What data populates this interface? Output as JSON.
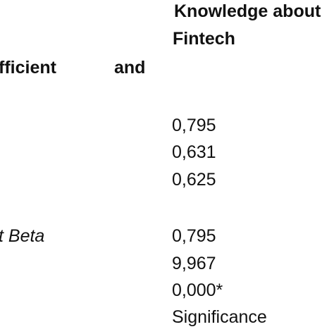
{
  "header": {
    "column_title_line1": "Knowledge about",
    "column_title_line2": "Fintech"
  },
  "section": {
    "label_left": "fficient",
    "label_right": "and"
  },
  "correlation_values": [
    "0,795",
    "0,631",
    "0,625"
  ],
  "regression": {
    "label": "t Beta",
    "values": [
      "0,795",
      "9,967",
      "0,000*"
    ],
    "footer": "Significance"
  }
}
